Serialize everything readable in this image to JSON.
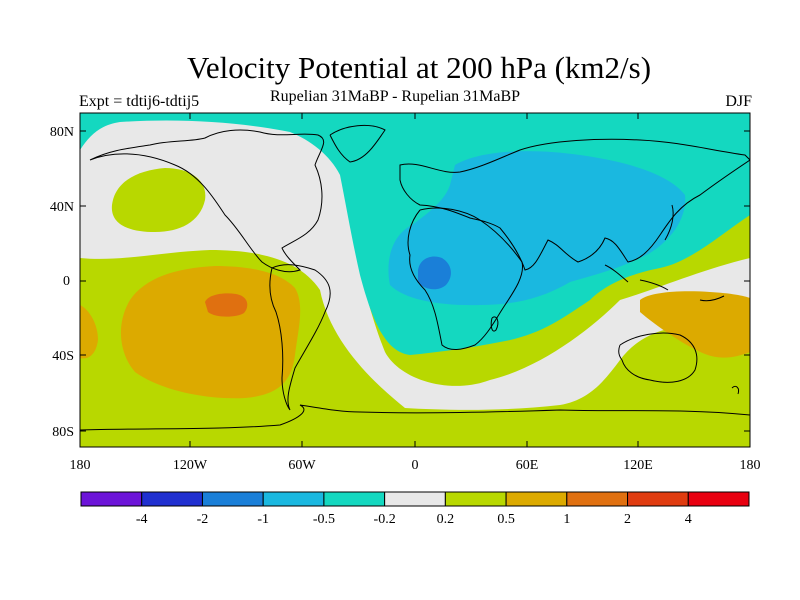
{
  "header": {
    "title": "Velocity Potential at 200 hPa (km2/s)",
    "expt_label": "Expt = tdtij6-tdtij5",
    "subtitle": "Rupelian  31MaBP - Rupelian  31MaBP",
    "season": "DJF"
  },
  "axes": {
    "lat_labels": [
      "80N",
      "40N",
      "0",
      "40S",
      "80S"
    ],
    "lon_labels": [
      "180",
      "120W",
      "60W",
      "0",
      "60E",
      "120E",
      "180"
    ]
  },
  "colorbar": {
    "colors": [
      "#6c14d8",
      "#2030d0",
      "#1a7fd8",
      "#1ab8e0",
      "#14d8c0",
      "#e8e8e8",
      "#b8d800",
      "#dcaa00",
      "#e07010",
      "#e03c10",
      "#e80010"
    ],
    "labels": [
      "-4",
      "-2",
      "-1",
      "-0.5",
      "-0.2",
      "0.2",
      "0.5",
      "1",
      "2",
      "4"
    ]
  },
  "fields": {
    "background": "#b8d800",
    "positive_low": "#e8e8e8",
    "negative_weak": "#14d8c0",
    "negative_mid": "#1ab8e0",
    "negative_strong": "#1a7fd8",
    "positive_mid": "#dcaa00",
    "positive_high": "#e07010"
  }
}
